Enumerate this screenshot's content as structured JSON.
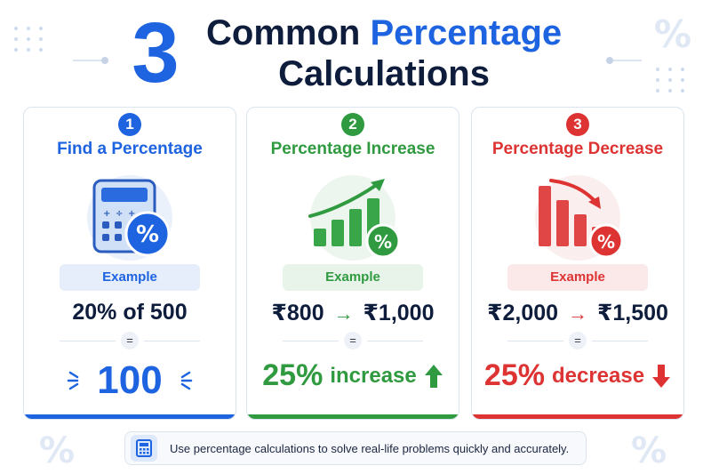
{
  "header": {
    "number": "3",
    "title_word1": "Common",
    "title_accent": "Percentage",
    "title_line2": "Calculations"
  },
  "colors": {
    "blue": "#1e63e0",
    "green": "#2f9a3f",
    "red": "#dd3333",
    "navy": "#0f1d3d"
  },
  "cards": [
    {
      "number": "1",
      "title": "Find a Percentage",
      "icon": "calculator-percent-icon",
      "example_label": "Example",
      "example_text": "20% of 500",
      "equals": "=",
      "result": "100"
    },
    {
      "number": "2",
      "title": "Percentage Increase",
      "icon": "rising-bar-chart-percent-icon",
      "example_label": "Example",
      "from": "₹800",
      "to": "₹1,000",
      "equals": "=",
      "result_value": "25%",
      "result_word": "increase"
    },
    {
      "number": "3",
      "title": "Percentage Decrease",
      "icon": "falling-bar-chart-percent-icon",
      "example_label": "Example",
      "from": "₹2,000",
      "to": "₹1,500",
      "equals": "=",
      "result_value": "25%",
      "result_word": "decrease"
    }
  ],
  "footer": {
    "icon": "calculator-icon",
    "text": "Use percentage calculations to solve real-life problems quickly and accurately."
  }
}
